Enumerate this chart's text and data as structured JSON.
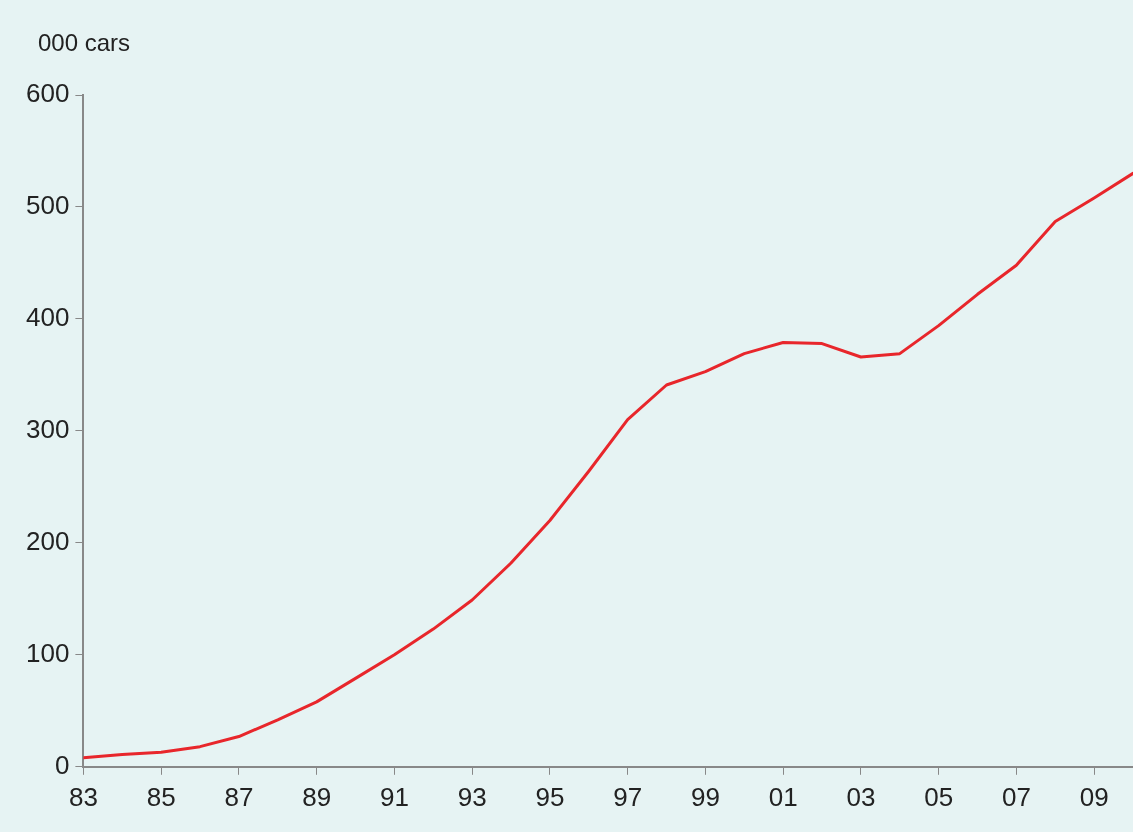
{
  "chart_data": {
    "type": "line",
    "ylabel": "000 cars",
    "x": [
      1983,
      1984,
      1985,
      1986,
      1987,
      1988,
      1989,
      1990,
      1991,
      1992,
      1993,
      1994,
      1995,
      1996,
      1997,
      1998,
      1999,
      2000,
      2001,
      2002,
      2003,
      2004,
      2005,
      2006,
      2007,
      2008,
      2009,
      2010
    ],
    "series": [
      {
        "color": "#e8262b",
        "values": [
          8,
          11,
          13,
          18,
          27,
          42,
          58,
          79,
          100,
          123,
          149,
          182,
          220,
          264,
          310,
          341,
          353,
          369,
          379,
          378,
          366,
          369,
          394,
          422,
          448,
          487,
          508,
          530
        ]
      }
    ],
    "xlim": [
      1983,
      2010
    ],
    "xticks": [
      {
        "value": 1983,
        "label": "83"
      },
      {
        "value": 1985,
        "label": "85"
      },
      {
        "value": 1987,
        "label": "87"
      },
      {
        "value": 1989,
        "label": "89"
      },
      {
        "value": 1991,
        "label": "91"
      },
      {
        "value": 1993,
        "label": "93"
      },
      {
        "value": 1995,
        "label": "95"
      },
      {
        "value": 1997,
        "label": "97"
      },
      {
        "value": 1999,
        "label": "99"
      },
      {
        "value": 2001,
        "label": "01"
      },
      {
        "value": 2003,
        "label": "03"
      },
      {
        "value": 2005,
        "label": "05"
      },
      {
        "value": 2007,
        "label": "07"
      },
      {
        "value": 2009,
        "label": "09"
      }
    ],
    "ylim": [
      0,
      600
    ],
    "yticks": [
      0,
      100,
      200,
      300,
      400,
      500,
      600
    ],
    "grid": false,
    "legend": false,
    "marker": "none",
    "line_style": "solid"
  }
}
